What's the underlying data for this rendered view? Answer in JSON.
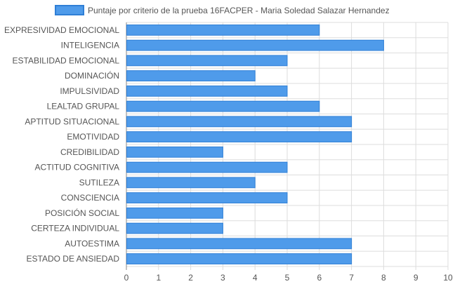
{
  "chart_data": {
    "type": "bar",
    "orientation": "horizontal",
    "categories": [
      "EXPRESIVIDAD EMOCIONAL",
      "INTELIGENCIA",
      "ESTABILIDAD EMOCIONAL",
      "DOMINACIÓN",
      "IMPULSIVIDAD",
      "LEALTAD GRUPAL",
      "APTITUD SITUACIONAL",
      "EMOTIVIDAD",
      "CREDIBILIDAD",
      "ACTITUD COGNITIVA",
      "SUTILEZA",
      "CONSCIENCIA",
      "POSICIÓN SOCIAL",
      "CERTEZA INDIVIDUAL",
      "AUTOESTIMA",
      "ESTADO DE ANSIEDAD"
    ],
    "series": [
      {
        "name": "Puntaje por criterio de la prueba 16FACPER - Maria Soledad Salazar Hernandez",
        "values": [
          6,
          8,
          5,
          4,
          5,
          6,
          7,
          7,
          3,
          5,
          4,
          5,
          3,
          3,
          7,
          7
        ]
      }
    ],
    "xlim": [
      0,
      10
    ],
    "xticks": [
      0,
      1,
      2,
      3,
      4,
      5,
      6,
      7,
      8,
      9,
      10
    ],
    "grid": true,
    "legend_position": "top-center",
    "colors": {
      "bar_fill": "#4f9bea",
      "bar_stroke": "#2f7fd6",
      "grid": "#dddddd",
      "axis": "#888888",
      "text": "#555555"
    }
  }
}
